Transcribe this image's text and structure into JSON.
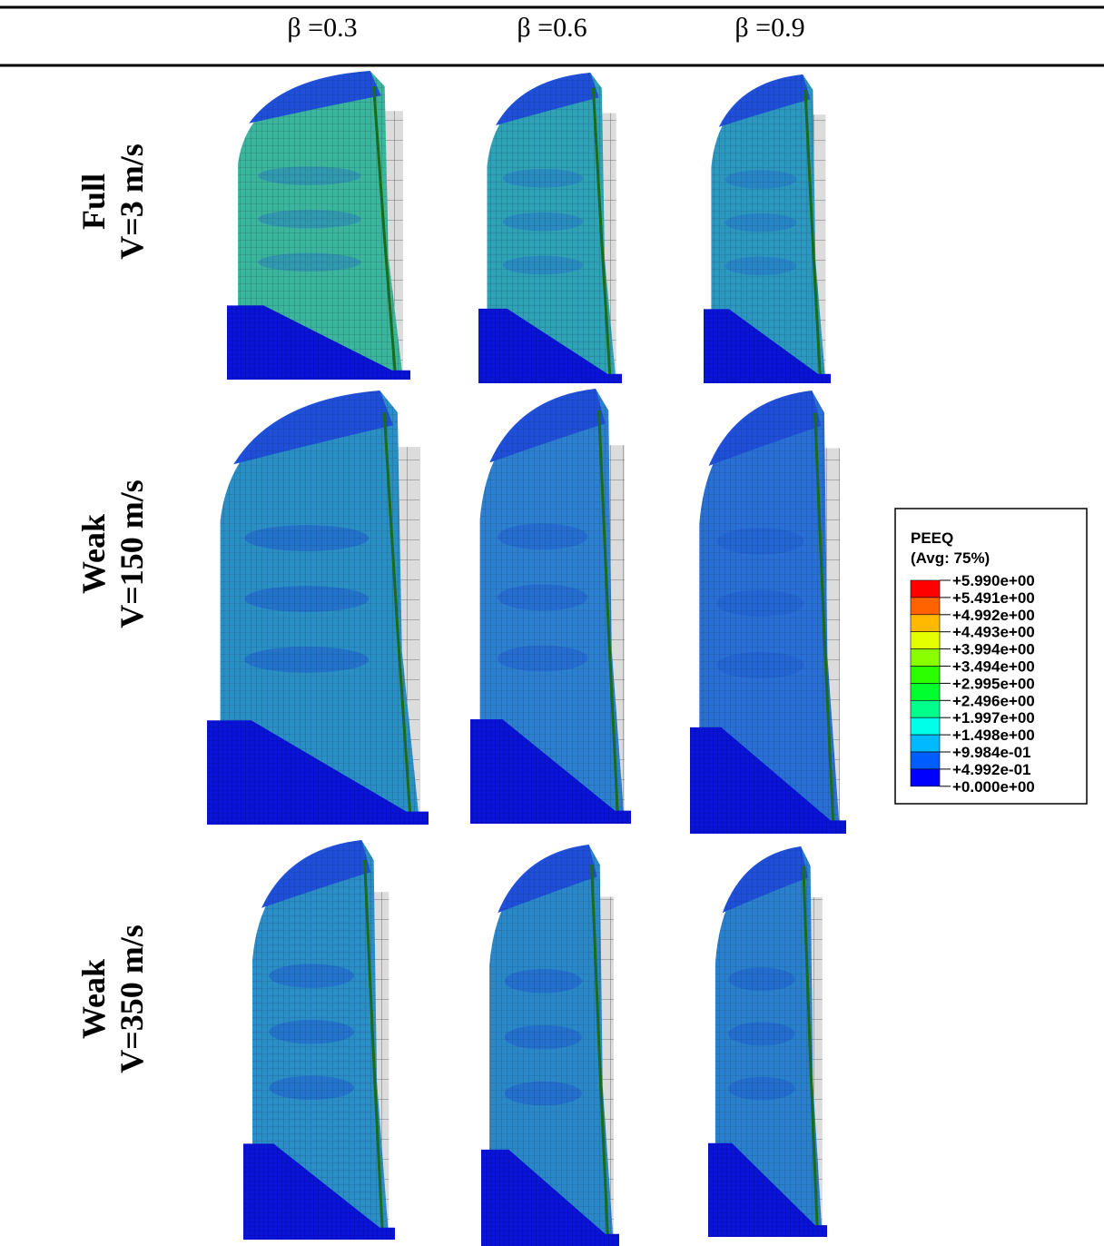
{
  "header": {
    "columns": [
      "β =0.3",
      "β =0.6",
      "β =0.9"
    ]
  },
  "rows": [
    {
      "label": [
        "Full",
        "V=3 m/s"
      ]
    },
    {
      "label": [
        "Weak",
        "V=150 m/s"
      ]
    },
    {
      "label": [
        "Weak",
        "V=350 m/s"
      ]
    }
  ],
  "legend": {
    "title": "PEEQ",
    "subtitle": "(Avg: 75%)",
    "levels": [
      "+5.990e+00",
      "+5.491e+00",
      "+4.992e+00",
      "+4.493e+00",
      "+3.994e+00",
      "+3.494e+00",
      "+2.995e+00",
      "+2.496e+00",
      "+1.997e+00",
      "+1.498e+00",
      "+9.984e-01",
      "+4.992e-01",
      "+0.000e+00"
    ],
    "colors": [
      "#ff0000",
      "#ff6300",
      "#ffb900",
      "#e3ff00",
      "#8aff00",
      "#2cff00",
      "#00ff2e",
      "#00ff8b",
      "#00ffe8",
      "#00b9ff",
      "#005dff",
      "#0000ff"
    ]
  }
}
